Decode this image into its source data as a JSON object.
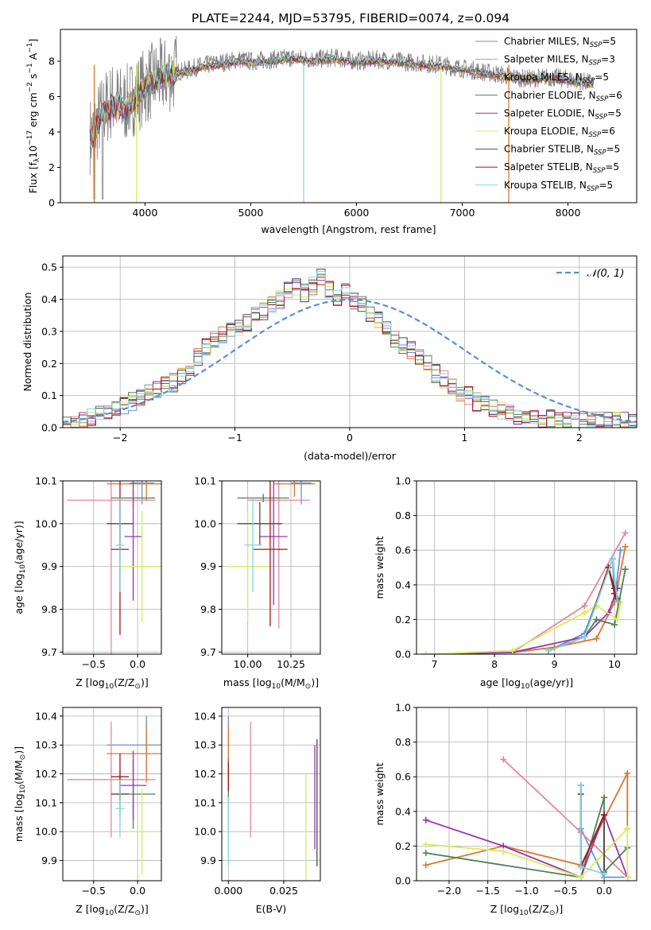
{
  "figure_title": "PLATE=2244, MJD=53795, FIBERID=0074, z=0.094",
  "series_styles": [
    {
      "name": "Chabrier MILES, N_SSP=5",
      "label_main": "Chabrier MILES, N",
      "label_sub": "SSP",
      "label_tail": "=5",
      "color": "#6b8fd6"
    },
    {
      "name": "Salpeter MILES, N_SSP=3",
      "label_main": "Salpeter MILES, N",
      "label_sub": "SSP",
      "label_tail": "=3",
      "color": "#e5879c"
    },
    {
      "name": "Kroupa MILES, N_SSP=5",
      "label_main": "Kroupa MILES, N",
      "label_sub": "SSP",
      "label_tail": "=5",
      "color": "#d9782e"
    },
    {
      "name": "Chabrier ELODIE, N_SSP=6",
      "label_main": "Chabrier ELODIE, N",
      "label_sub": "SSP",
      "label_tail": "=6",
      "color": "#4f7f5a"
    },
    {
      "name": "Salpeter ELODIE, N_SSP=5",
      "label_main": "Salpeter ELODIE, N",
      "label_sub": "SSP",
      "label_tail": "=5",
      "color": "#9b32b4"
    },
    {
      "name": "Kroupa ELODIE, N_SSP=6",
      "label_main": "Kroupa ELODIE, N",
      "label_sub": "SSP",
      "label_tail": "=6",
      "color": "#d6ec5a"
    },
    {
      "name": "Chabrier STELIB, N_SSP=5",
      "label_main": "Chabrier STELIB, N",
      "label_sub": "SSP",
      "label_tail": "=5",
      "color": "#4a4a4a"
    },
    {
      "name": "Salpeter STELIB, N_SSP=5",
      "label_main": "Salpeter STELIB, N",
      "label_sub": "SSP",
      "label_tail": "=5",
      "color": "#a01a1a"
    },
    {
      "name": "Kroupa STELIB, N_SSP=5",
      "label_main": "Kroupa STELIB, N",
      "label_sub": "SSP",
      "label_tail": "=5",
      "color": "#7fd8dd"
    }
  ],
  "chart_data": [
    {
      "id": "spectrum",
      "type": "line",
      "xlabel": "wavelength [Angstrom, rest frame]",
      "ylabel_parts": [
        "Flux [f",
        "λ",
        "10",
        "−17",
        " erg cm",
        "−2",
        " s",
        "−1",
        " A",
        "−1",
        "]"
      ],
      "xlim": [
        3200,
        8650
      ],
      "ylim": [
        0,
        9.8
      ],
      "xticks": [
        4000,
        5000,
        6000,
        7000,
        8000
      ],
      "yticks": [
        0,
        2,
        4,
        6,
        8
      ],
      "grid": false,
      "legend_position": "right",
      "data_color": "#808080",
      "series": [
        {
          "name": "data",
          "x": [
            3500,
            3600,
            3700,
            3800,
            3900,
            4000,
            4100,
            4200,
            4300,
            4400,
            4500,
            4600,
            4700,
            4800,
            4900,
            5000,
            5200,
            5400,
            5600,
            5800,
            6000,
            6200,
            6400,
            6600,
            6800,
            7000,
            7200,
            7400,
            7600,
            7800,
            8000,
            8200
          ],
          "y": [
            3.8,
            5.2,
            5.8,
            5.5,
            6.0,
            6.6,
            7.0,
            7.2,
            7.4,
            7.5,
            7.7,
            7.8,
            7.9,
            8.0,
            8.1,
            8.0,
            8.1,
            8.2,
            8.1,
            8.2,
            8.0,
            8.1,
            8.0,
            7.9,
            7.8,
            7.6,
            7.4,
            7.2,
            7.0,
            7.1,
            7.0,
            6.8
          ]
        },
        {
          "name": "model",
          "x": [
            3500,
            3600,
            3700,
            3800,
            3900,
            4000,
            4100,
            4200,
            4300,
            4400,
            4500,
            4600,
            4700,
            4800,
            4900,
            5000,
            5200,
            5400,
            5600,
            5800,
            6000,
            6200,
            6400,
            6600,
            6800,
            7000,
            7200,
            7400,
            7600,
            7800,
            8000,
            8200
          ],
          "y": [
            3.7,
            4.9,
            5.5,
            5.3,
            5.8,
            6.6,
            6.9,
            7.1,
            7.3,
            7.4,
            7.6,
            7.7,
            7.8,
            7.9,
            8.0,
            7.9,
            8.0,
            8.1,
            8.0,
            8.1,
            7.9,
            8.0,
            7.9,
            7.8,
            7.7,
            7.5,
            7.3,
            7.1,
            6.9,
            7.0,
            6.9,
            6.7
          ]
        }
      ]
    },
    {
      "id": "residuals",
      "type": "line",
      "xlabel": "(data-model)/error",
      "ylabel": "Normed distribution",
      "xlim": [
        -2.5,
        2.5
      ],
      "ylim": [
        0,
        0.535
      ],
      "xticks": [
        -2,
        -1,
        0,
        1,
        2
      ],
      "yticks": [
        0.0,
        0.1,
        0.2,
        0.3,
        0.4,
        0.5
      ],
      "grid": true,
      "legend_position": "top-right",
      "legend_label": "𝒩(0, 1)",
      "gaussian_color": "#5a8ed6",
      "bin_width": 0.1,
      "bins_start": -2.5,
      "hist_values": [
        0.01,
        0.01,
        0.02,
        0.03,
        0.04,
        0.05,
        0.06,
        0.07,
        0.08,
        0.09,
        0.11,
        0.12,
        0.13,
        0.14,
        0.16,
        0.19,
        0.22,
        0.25,
        0.27,
        0.29,
        0.3,
        0.31,
        0.33,
        0.35,
        0.36,
        0.38,
        0.4,
        0.43,
        0.44,
        0.42,
        0.44,
        0.47,
        0.43,
        0.41,
        0.43,
        0.39,
        0.38,
        0.36,
        0.34,
        0.32,
        0.28,
        0.26,
        0.24,
        0.22,
        0.2,
        0.17,
        0.15,
        0.13,
        0.11,
        0.1,
        0.08,
        0.07,
        0.06,
        0.05,
        0.05,
        0.04,
        0.04,
        0.03,
        0.03,
        0.03,
        0.02,
        0.02,
        0.02,
        0.02,
        0.02,
        0.02,
        0.02,
        0.02,
        0.02,
        0.02
      ]
    },
    {
      "id": "age-vs-Z",
      "type": "scatter",
      "xlabel_parts": [
        "Z [log",
        "10",
        "(Z/Z",
        "⊙",
        ")]"
      ],
      "ylabel_parts": [
        "age  [log",
        "10",
        "(age/yr)]"
      ],
      "xlim": [
        -0.85,
        0.27
      ],
      "ylim": [
        9.695,
        10.1
      ],
      "xticks": [
        -0.5,
        0.0
      ],
      "yticks": [
        9.7,
        9.8,
        9.9,
        10.0,
        10.1
      ],
      "grid": true,
      "points": [
        {
          "x": 0.05,
          "y": 10.095,
          "xerr": 0.14,
          "yerr": 0.05
        },
        {
          "x": -0.3,
          "y": 10.055,
          "xerr": 0.5,
          "yerr": 0.4
        },
        {
          "x": 0.1,
          "y": 10.093,
          "xerr": 0.45,
          "yerr": 0.04
        },
        {
          "x": -0.05,
          "y": 10.06,
          "xerr": 0.25,
          "yerr": 0.02
        },
        {
          "x": -0.05,
          "y": 9.97,
          "xerr": 0.1,
          "yerr": 0.15
        },
        {
          "x": 0.05,
          "y": 9.9,
          "xerr": 0.25,
          "yerr": 0.13
        },
        {
          "x": -0.2,
          "y": 10.0,
          "xerr": 0.15,
          "yerr": 0.06
        },
        {
          "x": -0.2,
          "y": 9.94,
          "xerr": 0.1,
          "yerr": 0.2
        },
        {
          "x": -0.2,
          "y": 9.95,
          "xerr": 0.05,
          "yerr": 0.11
        }
      ]
    },
    {
      "id": "age-vs-mass",
      "type": "scatter",
      "xlabel_parts": [
        "mass [log",
        "10",
        "(M/M",
        "⊙",
        ")]"
      ],
      "ylabel": "",
      "xlim": [
        9.85,
        10.42
      ],
      "ylim": [
        9.695,
        10.1
      ],
      "xticks": [
        10.0,
        10.25
      ],
      "yticks": [
        9.7,
        9.8,
        9.9,
        10.0,
        10.1
      ],
      "grid": true,
      "points": [
        {
          "x": 10.31,
          "y": 10.095,
          "xerr": 0.06,
          "yerr": 0.05
        },
        {
          "x": 10.18,
          "y": 10.055,
          "xerr": 0.18,
          "yerr": 0.3
        },
        {
          "x": 10.27,
          "y": 10.093,
          "xerr": 0.12,
          "yerr": 0.03
        },
        {
          "x": 10.09,
          "y": 10.06,
          "xerr": 0.15,
          "yerr": 0.01
        },
        {
          "x": 10.15,
          "y": 9.97,
          "xerr": 0.08,
          "yerr": 0.16
        },
        {
          "x": 10.0,
          "y": 9.9,
          "xerr": 0.12,
          "yerr": 0.13
        },
        {
          "x": 10.07,
          "y": 10.0,
          "xerr": 0.13,
          "yerr": 0.05
        },
        {
          "x": 10.13,
          "y": 9.94,
          "xerr": 0.1,
          "yerr": 0.18
        },
        {
          "x": 10.03,
          "y": 9.95,
          "xerr": 0.05,
          "yerr": 0.11
        }
      ]
    },
    {
      "id": "massweight-vs-age",
      "type": "line",
      "xlabel_parts": [
        "age  [log",
        "10",
        "(age/yr)]"
      ],
      "ylabel": "mass weight",
      "xlim": [
        6.7,
        10.37
      ],
      "ylim": [
        0,
        1.0
      ],
      "xticks": [
        7,
        8,
        9,
        10
      ],
      "yticks": [
        0.0,
        0.2,
        0.4,
        0.6,
        0.8,
        1.0
      ],
      "grid": true,
      "series_points": [
        {
          "x": [
            8.9,
            9.5,
            9.97,
            10.0,
            10.1
          ],
          "y": [
            0.02,
            0.12,
            0.55,
            0.3,
            0.6
          ]
        },
        {
          "x": [
            8.3,
            9.5,
            10.18
          ],
          "y": [
            0.01,
            0.28,
            0.7
          ]
        },
        {
          "x": [
            8.3,
            9.0,
            9.7,
            10.0,
            10.18
          ],
          "y": [
            0.01,
            0.04,
            0.09,
            0.3,
            0.62
          ]
        },
        {
          "x": [
            8.9,
            9.5,
            9.7,
            10.0,
            10.18
          ],
          "y": [
            0.02,
            0.1,
            0.2,
            0.17,
            0.49
          ]
        },
        {
          "x": [
            6.85,
            8.3,
            9.5,
            9.9,
            10.05
          ],
          "y": [
            0.0,
            0.01,
            0.1,
            0.24,
            0.38
          ]
        },
        {
          "x": [
            6.85,
            8.3,
            9.5,
            9.7,
            10.05,
            10.1
          ],
          "y": [
            0.0,
            0.02,
            0.24,
            0.28,
            0.2,
            0.3
          ]
        },
        {
          "x": [
            8.9,
            9.5,
            9.9,
            10.0,
            10.05
          ],
          "y": [
            0.02,
            0.1,
            0.5,
            0.38,
            0.32
          ]
        },
        {
          "x": [
            8.9,
            9.5,
            9.9,
            10.0,
            10.05
          ],
          "y": [
            0.02,
            0.1,
            0.5,
            0.35,
            0.3
          ]
        },
        {
          "x": [
            8.9,
            9.5,
            9.97,
            10.05
          ],
          "y": [
            0.02,
            0.1,
            0.55,
            0.3
          ]
        }
      ]
    },
    {
      "id": "mass-vs-Z",
      "type": "scatter",
      "xlabel_parts": [
        "Z [log",
        "10",
        "(Z/Z",
        "⊙",
        ")]"
      ],
      "ylabel_parts": [
        "mass [log",
        "10",
        "(M/M",
        "⊙",
        ")]"
      ],
      "xlim": [
        -0.85,
        0.27
      ],
      "ylim": [
        9.83,
        10.43
      ],
      "xticks": [
        -0.5,
        0.0
      ],
      "yticks": [
        9.9,
        10.0,
        10.1,
        10.2,
        10.3,
        10.4
      ],
      "grid": true,
      "points": [
        {
          "x": 0.1,
          "y": 10.3,
          "xerr": 0.45,
          "yerr": 0.1
        },
        {
          "x": -0.3,
          "y": 10.18,
          "xerr": 0.5,
          "yerr": 0.2
        },
        {
          "x": 0.1,
          "y": 10.27,
          "xerr": 0.45,
          "yerr": 0.1
        },
        {
          "x": -0.05,
          "y": 10.13,
          "xerr": 0.25,
          "yerr": 0.12
        },
        {
          "x": -0.05,
          "y": 10.16,
          "xerr": 0.15,
          "yerr": 0.12
        },
        {
          "x": 0.05,
          "y": 10.0,
          "xerr": 0.25,
          "yerr": 0.15
        },
        {
          "x": -0.2,
          "y": 10.13,
          "xerr": 0.1,
          "yerr": 0.08
        },
        {
          "x": -0.2,
          "y": 10.19,
          "xerr": 0.1,
          "yerr": 0.08
        },
        {
          "x": -0.2,
          "y": 10.08,
          "xerr": 0.05,
          "yerr": 0.1
        }
      ]
    },
    {
      "id": "mass-vs-EBV",
      "type": "scatter",
      "xlabel": "E(B-V)",
      "ylabel": "",
      "xlim": [
        -0.003,
        0.0415
      ],
      "ylim": [
        9.83,
        10.43
      ],
      "xticks": [
        0.0,
        0.025
      ],
      "yticks": [
        9.9,
        10.0,
        10.1,
        10.2,
        10.3,
        10.4
      ],
      "grid": true,
      "points": [
        {
          "x": 0.0,
          "y": 10.3,
          "xerr": 0,
          "yerr": 0.1
        },
        {
          "x": 0.01,
          "y": 10.18,
          "xerr": 0,
          "yerr": 0.2
        },
        {
          "x": 0.0,
          "y": 10.27,
          "xerr": 0,
          "yerr": 0.1
        },
        {
          "x": 0.0,
          "y": 10.13,
          "xerr": 0,
          "yerr": 0.12
        },
        {
          "x": 0.039,
          "y": 10.12,
          "xerr": 0,
          "yerr": 0.18
        },
        {
          "x": 0.035,
          "y": 10.0,
          "xerr": 0,
          "yerr": 0.2
        },
        {
          "x": 0.04,
          "y": 10.1,
          "xerr": 0,
          "yerr": 0.22
        },
        {
          "x": 0.0,
          "y": 10.19,
          "xerr": 0,
          "yerr": 0.05
        },
        {
          "x": 0.0,
          "y": 10.0,
          "xerr": 0,
          "yerr": 0.12
        }
      ]
    },
    {
      "id": "massweight-vs-Z",
      "type": "line",
      "xlabel_parts": [
        "Z [log",
        "10",
        "(Z/Z",
        "⊙",
        ")]"
      ],
      "ylabel": "mass weight",
      "xlim": [
        -2.42,
        0.42
      ],
      "ylim": [
        0,
        1.0
      ],
      "xticks": [
        -2.0,
        -1.5,
        -1.0,
        -0.5,
        0.0
      ],
      "yticks": [
        0.0,
        0.2,
        0.4,
        0.6,
        0.8,
        1.0
      ],
      "grid": true,
      "series_points": [
        {
          "x": [
            -0.3,
            -0.3,
            0.0,
            0.3
          ],
          "y": [
            0.55,
            0.3,
            0.02,
            0.02
          ]
        },
        {
          "x": [
            -1.3,
            -0.3,
            0.3
          ],
          "y": [
            0.7,
            0.28,
            0.02
          ]
        },
        {
          "x": [
            -2.3,
            -1.3,
            -0.3,
            0.3,
            0.3
          ],
          "y": [
            0.09,
            0.2,
            0.09,
            0.62,
            0.3
          ]
        },
        {
          "x": [
            -2.3,
            -0.3,
            0.0,
            0.0,
            0.3
          ],
          "y": [
            0.16,
            0.02,
            0.48,
            0.05,
            0.19
          ]
        },
        {
          "x": [
            -2.3,
            -1.3,
            -0.3,
            0.0,
            0.3
          ],
          "y": [
            0.35,
            0.2,
            0.02,
            0.38,
            0.02
          ]
        },
        {
          "x": [
            -2.3,
            -1.3,
            -0.3,
            0.3,
            0.3
          ],
          "y": [
            0.21,
            0.17,
            0.02,
            0.3,
            0.02
          ]
        },
        {
          "x": [
            -0.3,
            -0.3,
            0.0,
            0.0
          ],
          "y": [
            0.55,
            0.08,
            0.38,
            0.04
          ]
        },
        {
          "x": [
            -0.3,
            -0.3,
            0.0
          ],
          "y": [
            0.5,
            0.08,
            0.38
          ]
        },
        {
          "x": [
            -0.3,
            -0.3,
            0.0
          ],
          "y": [
            0.55,
            0.08,
            0.04
          ]
        }
      ]
    }
  ]
}
